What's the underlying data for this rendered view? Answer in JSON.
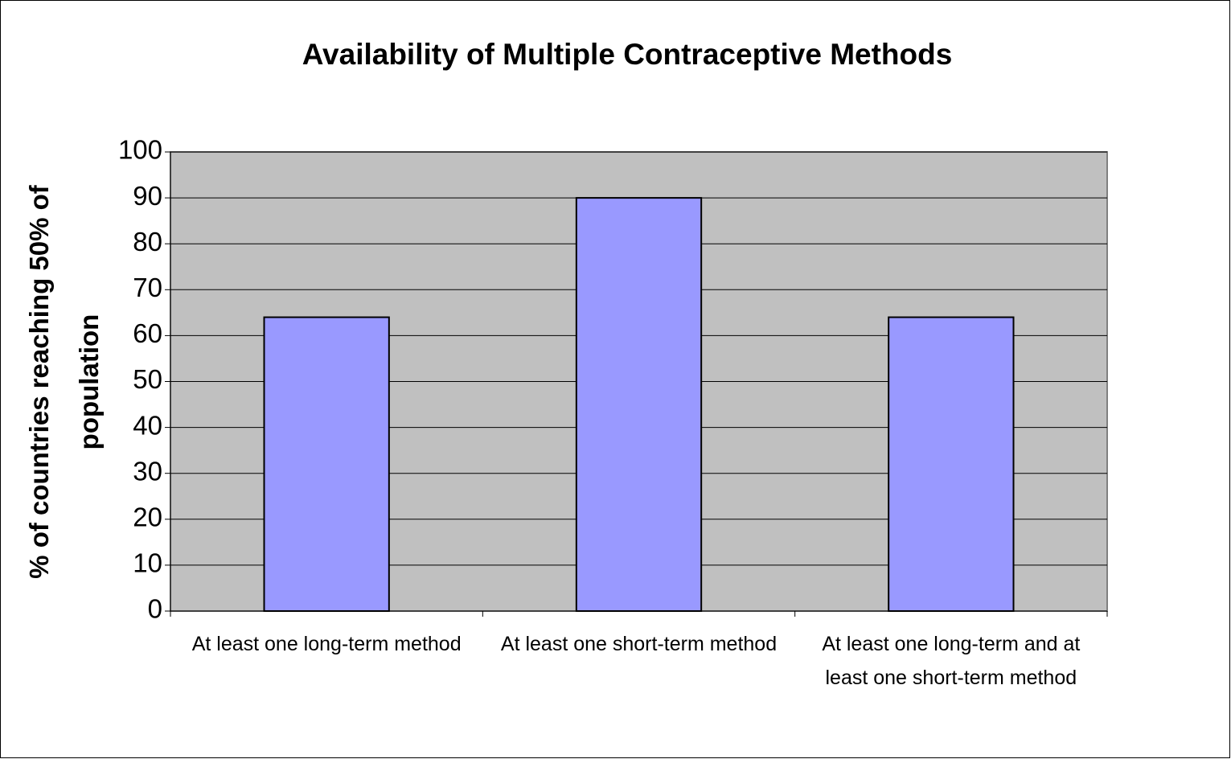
{
  "chart_data": {
    "type": "bar",
    "title": "Availability of Multiple Contraceptive Methods",
    "ylabel": "% of countries reaching 50% of population",
    "categories": [
      "At least one long-term method",
      "At least one short-term method",
      "At least one long-term and at least one short-term method"
    ],
    "values": [
      64,
      90,
      64
    ],
    "color": "#9999ff",
    "ylim": [
      0,
      100
    ],
    "yticks": [
      0,
      10,
      20,
      30,
      40,
      50,
      60,
      70,
      80,
      90,
      100
    ],
    "grid": true
  }
}
